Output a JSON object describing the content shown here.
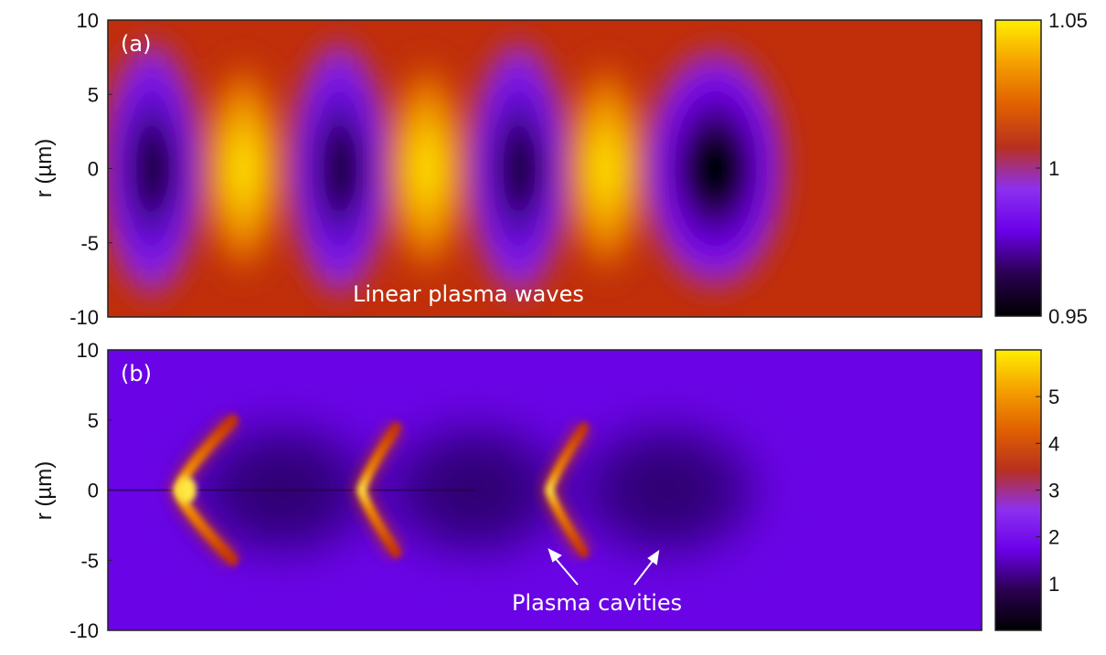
{
  "chart_data": [
    {
      "type": "heatmap",
      "panel_label": "(a)",
      "ylabel": "r (µm)",
      "yticks": [
        10,
        5,
        0,
        -5,
        -10
      ],
      "ylim": [
        -10,
        10
      ],
      "colorbar": {
        "min": 0.95,
        "max": 1.05,
        "tick_labels": [
          "1.05",
          "1",
          "0.95"
        ],
        "tick_values": [
          1.05,
          1,
          0.95
        ]
      },
      "colormap": [
        "#000000",
        "#2a0050",
        "#6a00e8",
        "#8c30f0",
        "#b8301f",
        "#e06000",
        "#f5a000",
        "#ffee00"
      ],
      "background_value": 1.0,
      "features": [
        {
          "kind": "minimum",
          "x_frac": 0.05,
          "value": 0.966,
          "r_extent": 7.5
        },
        {
          "kind": "maximum",
          "x_frac": 0.155,
          "value": 1.045,
          "r_extent": 6.5
        },
        {
          "kind": "minimum",
          "x_frac": 0.265,
          "value": 0.962,
          "r_extent": 7.5
        },
        {
          "kind": "maximum",
          "x_frac": 0.365,
          "value": 1.045,
          "r_extent": 6.5
        },
        {
          "kind": "minimum",
          "x_frac": 0.47,
          "value": 0.958,
          "r_extent": 7.5
        },
        {
          "kind": "maximum",
          "x_frac": 0.57,
          "value": 1.048,
          "r_extent": 6.5
        },
        {
          "kind": "minimum",
          "x_frac": 0.695,
          "value": 0.95,
          "r_extent": 7.2
        }
      ],
      "annotations": [
        "Linear plasma waves"
      ]
    },
    {
      "type": "heatmap",
      "panel_label": "(b)",
      "ylabel": "r (µm)",
      "yticks": [
        10,
        5,
        0,
        -5,
        -10
      ],
      "ylim": [
        -10,
        10
      ],
      "colorbar": {
        "min": 0,
        "max": 6,
        "tick_labels": [
          "5",
          "4",
          "3",
          "2",
          "1"
        ],
        "tick_values": [
          5,
          4,
          3,
          2,
          1
        ]
      },
      "colormap": [
        "#000000",
        "#2a0050",
        "#6a00e8",
        "#8c30f0",
        "#b8301f",
        "#e06000",
        "#f5a000",
        "#ffee00"
      ],
      "background_value": 1.8,
      "features": [
        {
          "kind": "cavity_wall",
          "x_frac": 0.095,
          "peak_value": 5.8,
          "r_extent": 5
        },
        {
          "kind": "cavity",
          "x_frac": 0.2,
          "value": 0.5
        },
        {
          "kind": "cavity_wall",
          "x_frac": 0.305,
          "peak_value": 5.0,
          "r_extent": 4.5
        },
        {
          "kind": "cavity",
          "x_frac": 0.42,
          "value": 0.5
        },
        {
          "kind": "cavity_wall",
          "x_frac": 0.52,
          "peak_value": 4.2,
          "r_extent": 4.5
        },
        {
          "kind": "cavity",
          "x_frac": 0.64,
          "value": 0.7
        }
      ],
      "annotations": [
        "Plasma cavities"
      ]
    }
  ]
}
